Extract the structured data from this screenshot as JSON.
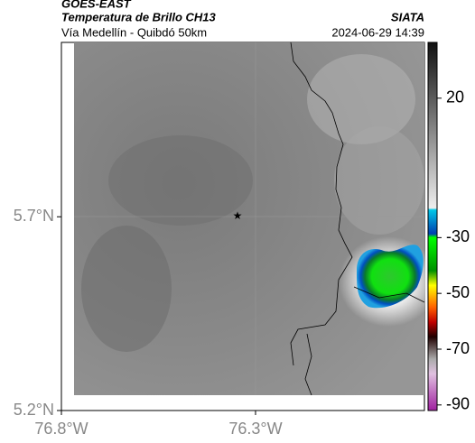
{
  "header": {
    "source": "GOES-EAST",
    "product": "Temperatura de Brillo CH13",
    "agency": "SIATA",
    "route": "Vía Medellín - Quibdó 50km",
    "timestamp": "2024-06-29 14:39"
  },
  "map": {
    "xlim": [
      -76.8,
      -75.865
    ],
    "ylim": [
      5.2,
      6.15
    ],
    "xticks": [
      {
        "value": -76.8,
        "label": "76.8°W"
      },
      {
        "value": -76.3,
        "label": "76.3°W"
      }
    ],
    "yticks": [
      {
        "value": 5.2,
        "label": "5.2°N"
      },
      {
        "value": 5.7,
        "label": "5.7°N"
      }
    ]
  },
  "colorbar": {
    "lim": [
      -92,
      40
    ],
    "ticks": [
      20,
      -30,
      -50,
      -70,
      -90
    ]
  }
}
